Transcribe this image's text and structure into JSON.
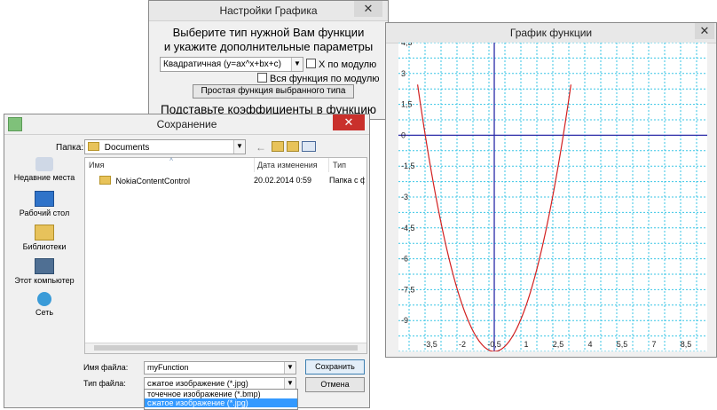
{
  "settings": {
    "title": "Настройки Графика",
    "heading_line1": "Выберите тип нужной Вам функции",
    "heading_line2": "и укажите дополнительные параметры",
    "function_type_value": "Квадратичная (y=ax^x+bx+c)",
    "checkbox_x_abs": "X по модулю",
    "checkbox_whole_abs": "Вся функция по модулю",
    "simple_button": "Простая функция выбранного типа",
    "coef_heading": "Подставьте коэффициенты в функцию",
    "close_glyph": "✕"
  },
  "graph": {
    "title": "График функции",
    "close_glyph": "✕"
  },
  "chart_data": {
    "type": "line",
    "title": "",
    "xlabel": "",
    "ylabel": "",
    "xlim": [
      -5,
      9.5
    ],
    "ylim": [
      -10.5,
      4.5
    ],
    "x_ticks": [
      -3.5,
      -2,
      -0.5,
      1,
      2.5,
      4,
      5.5,
      7,
      8.5
    ],
    "x_tick_labels": [
      "-3,5",
      "-2",
      "-0,5",
      "1",
      "2,5",
      "4",
      "5,5",
      "7",
      "8,5"
    ],
    "y_ticks": [
      4.5,
      3,
      1.5,
      0,
      -1.5,
      -3,
      -4.5,
      -6,
      -7.5,
      -9
    ],
    "y_tick_labels": [
      "4,5",
      "3",
      "1,5",
      "0",
      "-1,5",
      "-3",
      "-4,5",
      "-6",
      "-7,5",
      "-9"
    ],
    "grid": true,
    "series": [
      {
        "color": "#d22020",
        "x": [
          -4.0,
          -3.5,
          -3.0,
          -2.5,
          -2.0,
          -1.5,
          -1.0,
          -0.5,
          0.0,
          0.5,
          1.0,
          1.5,
          2.0,
          2.5,
          3.0
        ],
        "y": [
          4.5,
          1.75,
          -0.75,
          -3.0,
          -5.0,
          -6.75,
          -8.25,
          -9.5,
          -10.5,
          -11.25,
          -9.5,
          -8.25,
          -6.75,
          -5.0,
          -3.0
        ]
      }
    ],
    "parabola": {
      "a": 1,
      "b": 1,
      "c": -10.25
    },
    "axis_color": "#2a2aa8",
    "grid_color": "#39c6e6"
  },
  "save": {
    "title": "Сохранение",
    "folder_label": "Папка:",
    "folder_value": "Documents",
    "places": [
      {
        "label": "Недавние места",
        "icon": "recent-places-icon"
      },
      {
        "label": "Рабочий стол",
        "icon": "desktop-icon"
      },
      {
        "label": "Библиотеки",
        "icon": "libraries-icon"
      },
      {
        "label": "Этот компьютер",
        "icon": "computer-icon"
      },
      {
        "label": "Сеть",
        "icon": "network-icon"
      }
    ],
    "columns": {
      "name": "Имя",
      "date": "Дата изменения",
      "type": "Тип"
    },
    "rows": [
      {
        "name": "NokiaContentControl",
        "date": "20.02.2014 0:59",
        "type": "Папка с ф"
      }
    ],
    "filename_label": "Имя файла:",
    "filename_value": "myFunction",
    "filetype_label": "Тип файла:",
    "filetype_value": "сжатое изображение (*.jpg)",
    "filetype_options": [
      "точечное изображение (*.bmp)",
      "сжатое изображение (*.jpg)"
    ],
    "save_button": "Сохранить",
    "cancel_button": "Отмена",
    "close_glyph": "✕"
  }
}
